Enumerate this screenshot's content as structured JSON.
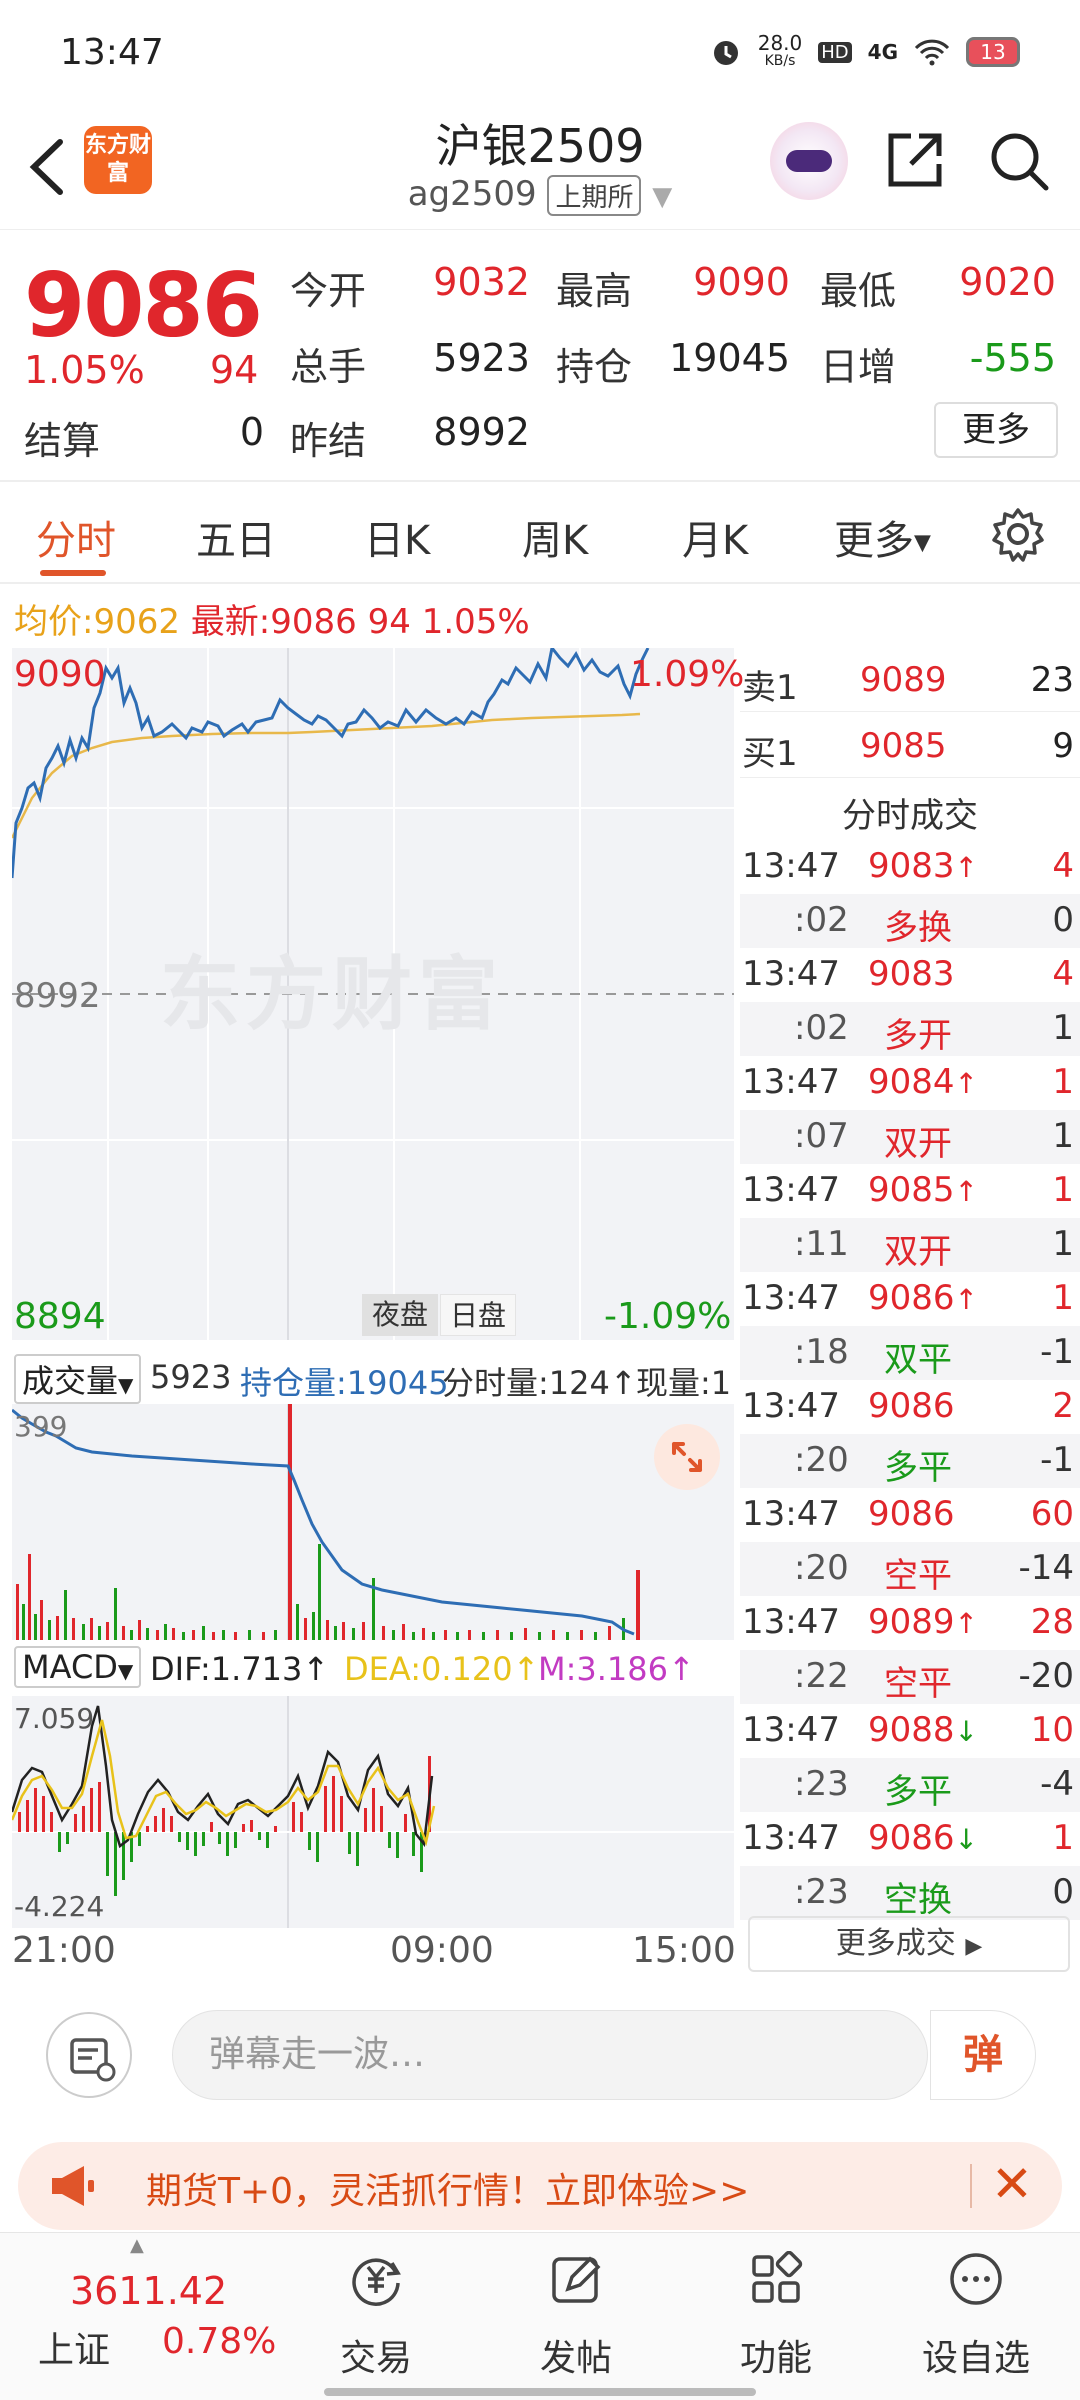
{
  "status": {
    "time": "13:47",
    "net_speed": "28.0",
    "net_unit": "KB/s",
    "hd": "HD",
    "network": "4G",
    "battery": "13"
  },
  "header": {
    "logo_text": "东方财富",
    "title": "沪银2509",
    "code": "ag2509",
    "exchange": "上期所"
  },
  "quote": {
    "last_price": "9086",
    "change_pct": "1.05%",
    "change_val": "94",
    "open_label": "今开",
    "open": "9032",
    "high_label": "最高",
    "high": "9090",
    "low_label": "最低",
    "low": "9020",
    "volume_label": "总手",
    "volume": "5923",
    "oi_label": "持仓",
    "oi": "19045",
    "oi_change_label": "日增",
    "oi_change": "-555",
    "settle_label": "结算",
    "settle": "0",
    "prev_settle_label": "昨结",
    "prev_settle": "8992",
    "more_label": "更多"
  },
  "tabs": [
    "分时",
    "五日",
    "日K",
    "周K",
    "月K",
    "更多"
  ],
  "info": {
    "avg_label": "均价:",
    "avg": "9062",
    "last_label": "最新:",
    "last": "9086",
    "change": "94",
    "pct": "1.05%"
  },
  "chart": {
    "price_hi": "9090",
    "pct_hi": "1.09%",
    "price_mid": "8992",
    "price_lo": "8894",
    "pct_lo": "-1.09%",
    "watermark": "东方财富",
    "night_tag": "夜盘",
    "day_tag": "日盘",
    "time_labels": [
      "21:00",
      "09:00",
      "15:00"
    ],
    "price_line_color": "#2e6db4",
    "avg_line_color": "#e8b84a"
  },
  "volume": {
    "selector": "成交量",
    "total": "5923",
    "oi_label": "持仓量:19045",
    "minute_label": "分时量:124↑",
    "now_label": "现量:1",
    "max": "399"
  },
  "macd": {
    "selector": "MACD",
    "dif": "DIF:1.713↑",
    "dea": "DEA:0.120↑",
    "m": "M:3.186↑",
    "max": "7.059",
    "min": "-4.224"
  },
  "orderbook": {
    "ask_label": "卖1",
    "ask_price": "9089",
    "ask_vol": "23",
    "bid_label": "买1",
    "bid_price": "9085",
    "bid_vol": "9",
    "trades_title": "分时成交",
    "more_trades": "更多成交"
  },
  "trades": [
    {
      "time": "13:47",
      "price": "9083",
      "arrow": "↑",
      "vol": "4",
      "sec": ":02",
      "type": "多换",
      "oi": "0",
      "type_color": "red"
    },
    {
      "time": "13:47",
      "price": "9083",
      "arrow": "",
      "vol": "4",
      "sec": ":02",
      "type": "多开",
      "oi": "1",
      "type_color": "red"
    },
    {
      "time": "13:47",
      "price": "9084",
      "arrow": "↑",
      "vol": "1",
      "sec": ":07",
      "type": "双开",
      "oi": "1",
      "type_color": "red"
    },
    {
      "time": "13:47",
      "price": "9085",
      "arrow": "↑",
      "vol": "1",
      "sec": ":11",
      "type": "双开",
      "oi": "1",
      "type_color": "red"
    },
    {
      "time": "13:47",
      "price": "9086",
      "arrow": "↑",
      "vol": "1",
      "sec": ":18",
      "type": "双平",
      "oi": "-1",
      "type_color": "green"
    },
    {
      "time": "13:47",
      "price": "9086",
      "arrow": "",
      "vol": "2",
      "sec": ":20",
      "type": "多平",
      "oi": "-1",
      "type_color": "green"
    },
    {
      "time": "13:47",
      "price": "9086",
      "arrow": "",
      "vol": "60",
      "sec": ":20",
      "type": "空平",
      "oi": "-14",
      "type_color": "red"
    },
    {
      "time": "13:47",
      "price": "9089",
      "arrow": "↑",
      "vol": "28",
      "sec": ":22",
      "type": "空平",
      "oi": "-20",
      "type_color": "red"
    },
    {
      "time": "13:47",
      "price": "9088",
      "arrow": "↓",
      "vol": "10",
      "sec": ":23",
      "type": "多平",
      "oi": "-4",
      "type_color": "green"
    },
    {
      "time": "13:47",
      "price": "9086",
      "arrow": "↓",
      "vol": "1",
      "sec": ":23",
      "type": "空换",
      "oi": "0",
      "type_color": "green"
    }
  ],
  "danmaku": {
    "placeholder": "弹幕走一波…",
    "send": "弹"
  },
  "promo": {
    "text": "期货T+0，灵活抓行情！立即体验>>"
  },
  "bottom_nav": {
    "index_value": "3611.42",
    "index_name": "上证",
    "index_pct": "0.78%",
    "items": [
      "交易",
      "发帖",
      "功能",
      "设自选"
    ]
  }
}
